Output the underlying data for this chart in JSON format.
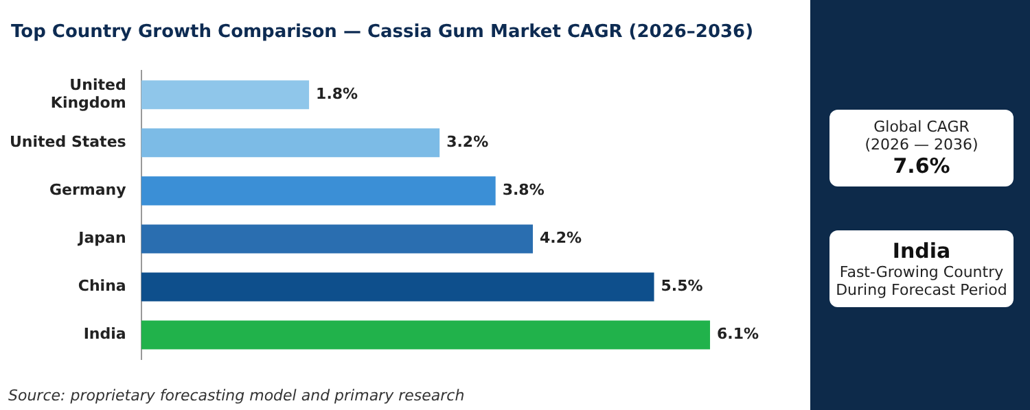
{
  "chart_data": {
    "type": "bar",
    "orientation": "horizontal",
    "title": "Top Country Growth Comparison — Cassia Gum Market CAGR (2026–2036)",
    "categories": [
      "United Kingdom",
      "United States",
      "Germany",
      "Japan",
      "China",
      "India"
    ],
    "values": [
      1.8,
      3.2,
      3.8,
      4.2,
      5.5,
      6.1
    ],
    "colors": [
      "#8fc6ea",
      "#7cbbe6",
      "#3b8fd6",
      "#2a6eb0",
      "#0e4f8c",
      "#21b24b"
    ],
    "value_labels": [
      "1.8%",
      "3.2%",
      "3.8%",
      "4.2%",
      "5.5%",
      "6.1%"
    ],
    "annotations": [
      "Source: proprietary forecasting model and primary research",
      "Global CAGR",
      "(2026 — 2036)",
      "7.6%",
      "India",
      "Fast-Growing Country",
      "During Forecast Period"
    ]
  }
}
